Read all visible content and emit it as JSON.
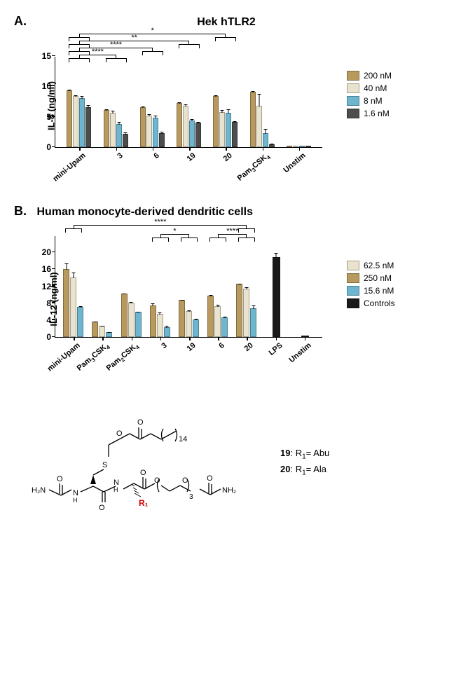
{
  "panelA": {
    "label": "A.",
    "title": "Hek hTLR2",
    "ylabel": "IL-8 (ng/ml)",
    "ylim": [
      0,
      15
    ],
    "yticks": [
      0,
      5,
      10,
      15
    ],
    "legend": [
      {
        "label": "200 nM",
        "color": "#b89a5f"
      },
      {
        "label": "40 nM",
        "color": "#e9e2cc"
      },
      {
        "label": "8 nM",
        "color": "#6eb6cf"
      },
      {
        "label": "1.6 nM",
        "color": "#4d4d4d"
      }
    ],
    "categories": [
      {
        "label": "mini-Upam",
        "values": [
          9.3,
          8.4,
          8.1,
          6.6
        ],
        "err": [
          0.3,
          0.2,
          0.4,
          0.4
        ]
      },
      {
        "label": "3",
        "values": [
          6.1,
          5.7,
          3.8,
          2.2
        ],
        "err": [
          0.3,
          0.4,
          0.5,
          0.3
        ]
      },
      {
        "label": "6",
        "values": [
          6.6,
          5.2,
          4.9,
          2.3
        ],
        "err": [
          0.2,
          0.3,
          0.4,
          0.3
        ]
      },
      {
        "label": "19",
        "values": [
          7.3,
          6.8,
          4.4,
          4.0
        ],
        "err": [
          0.2,
          0.4,
          0.3,
          0.3
        ]
      },
      {
        "label": "20",
        "values": [
          8.4,
          5.8,
          5.6,
          4.2
        ],
        "err": [
          0.2,
          0.4,
          0.8,
          0.2
        ]
      },
      {
        "label": "Pam₃CSK₄",
        "values": [
          9.1,
          6.8,
          2.3,
          0.5
        ],
        "err": [
          0.2,
          2.1,
          0.8,
          0.2
        ]
      },
      {
        "label": "Unstim",
        "values": [
          0,
          0,
          0,
          0
        ],
        "err": [
          0,
          0,
          0,
          0
        ]
      }
    ],
    "sig_annotations": [
      {
        "from_group": 0,
        "to_group": 1,
        "level": 0,
        "label": "****"
      },
      {
        "from_group": 0,
        "to_group": 2,
        "level": 1,
        "label": "****"
      },
      {
        "from_group": 0,
        "to_group": 3,
        "level": 2,
        "label": "**"
      },
      {
        "from_group": 0,
        "to_group": 4,
        "level": 3,
        "label": "*"
      }
    ]
  },
  "panelB": {
    "label": "B.",
    "title": "Human monocyte-derived dendritic cells",
    "ylabel": "IL-12 (ng/ml)",
    "ylim": [
      0,
      24
    ],
    "yticks": [
      0,
      4,
      8,
      12,
      16,
      20
    ],
    "legend": [
      {
        "label": "62.5 nM",
        "color": "#e9e2cc"
      },
      {
        "label": "250 nM",
        "color": "#b89a5f"
      },
      {
        "label": "15.6 nM",
        "color": "#6eb6cf"
      },
      {
        "label": "Controls",
        "color": "#1a1a1a"
      }
    ],
    "bar_order_colors": [
      "#b89a5f",
      "#e9e2cc",
      "#6eb6cf"
    ],
    "categories": [
      {
        "label": "mini-Upam",
        "values": [
          16.0,
          14.0,
          7.1
        ],
        "err": [
          1.6,
          1.4,
          0.3
        ]
      },
      {
        "label": "Pam₃CSK₄",
        "values": [
          3.6,
          2.6,
          1.1
        ],
        "err": [
          0.2,
          0.2,
          0.2
        ]
      },
      {
        "label": "Pam₂CSK₄",
        "values": [
          10.2,
          8.1,
          5.9
        ],
        "err": [
          0.3,
          0.3,
          0.2
        ]
      },
      {
        "label": "3",
        "values": [
          7.5,
          5.4,
          2.4
        ],
        "err": [
          0.6,
          0.5,
          0.4
        ]
      },
      {
        "label": "19",
        "values": [
          8.7,
          6.1,
          4.1
        ],
        "err": [
          0.2,
          0.3,
          0.3
        ]
      },
      {
        "label": "6",
        "values": [
          9.8,
          7.3,
          4.7
        ],
        "err": [
          0.3,
          0.5,
          0.3
        ]
      },
      {
        "label": "20",
        "values": [
          12.5,
          11.4,
          6.8
        ],
        "err": [
          0.3,
          0.5,
          0.8
        ]
      }
    ],
    "controls": [
      {
        "label": "LPS",
        "value": 18.8,
        "err": 1.2,
        "color": "#1a1a1a"
      },
      {
        "label": "Unstim",
        "value": 0,
        "err": 0,
        "color": "#1a1a1a"
      }
    ],
    "sig_annotations": [
      {
        "from": "19_grp",
        "to": "3_grp",
        "label": "*"
      },
      {
        "from": "20_grp",
        "to": "6_grp",
        "label": "****"
      },
      {
        "from": "mini_grp",
        "to": "20_grp",
        "label": "****"
      }
    ]
  },
  "molecule": {
    "r1_color": "#cc0000",
    "subscript_text": "R₁",
    "legend": [
      {
        "compound": "19",
        "r1": "Abu"
      },
      {
        "compound": "20",
        "r1": "Ala"
      }
    ]
  }
}
